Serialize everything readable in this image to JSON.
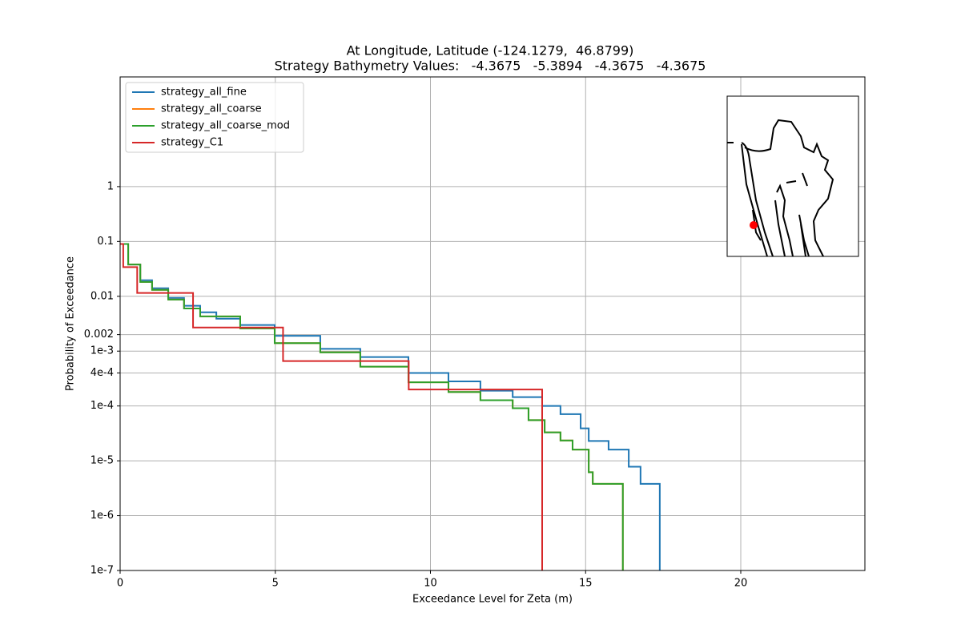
{
  "chart_data": {
    "type": "line",
    "drawstyle": "steps-post",
    "title": "At Longitude, Latitude (-124.1279,  46.8799)",
    "subtitle": "Strategy Bathymetry Values:   -4.3675   -5.3894   -4.3675   -4.3675",
    "xlabel": "Exceedance Level for Zeta (m)",
    "ylabel": "Probability of Exceedance",
    "xlim": [
      0,
      24
    ],
    "xticks": [
      0,
      5,
      10,
      15,
      20
    ],
    "yscale": "log",
    "ylim": [
      1e-07,
      100
    ],
    "yticks": [
      {
        "value": 1e-07,
        "label": "1e-7"
      },
      {
        "value": 1e-06,
        "label": "1e-6"
      },
      {
        "value": 1e-05,
        "label": "1e-5"
      },
      {
        "value": 0.0001,
        "label": "1e-4"
      },
      {
        "value": 0.0004,
        "label": "4e-4"
      },
      {
        "value": 0.001,
        "label": "1e-3"
      },
      0.002,
      0.01,
      0.1,
      1
    ],
    "grid": true,
    "legend": "upper left",
    "series": [
      {
        "name": "strategy_all_fine",
        "color": "#1f77b4",
        "x": [
          0,
          0.26,
          0.65,
          1.03,
          1.55,
          2.06,
          2.58,
          3.1,
          3.87,
          4.98,
          6.45,
          7.74,
          9.29,
          10.58,
          11.61,
          12.65,
          13.6,
          14.19,
          14.84,
          15.1,
          15.74,
          16.39,
          16.77,
          17.39
        ],
        "values": [
          0.09,
          0.038,
          0.0196,
          0.014,
          0.0093,
          0.0067,
          0.0051,
          0.0039,
          0.003,
          0.0019,
          0.0011,
          0.00078,
          0.0004,
          0.00028,
          0.00019,
          0.000145,
          0.0001,
          7.1e-05,
          3.9e-05,
          2.3e-05,
          1.6e-05,
          7.8e-06,
          3.8e-06,
          1e-07
        ]
      },
      {
        "name": "strategy_all_coarse",
        "color": "#ff7f0e",
        "x": [
          0,
          0.26,
          0.65,
          1.03,
          1.55,
          2.06,
          2.58,
          3.87,
          4.98,
          6.45,
          7.74,
          9.29,
          10.58,
          11.61,
          12.65,
          13.16,
          13.68,
          14.19,
          14.58,
          15.1,
          15.23,
          16.2
        ],
        "values": [
          0.09,
          0.038,
          0.0183,
          0.0131,
          0.0087,
          0.006,
          0.0043,
          0.0026,
          0.0014,
          0.00095,
          0.00052,
          0.00027,
          0.00018,
          0.000127,
          9.1e-05,
          5.5e-05,
          3.3e-05,
          2.35e-05,
          1.6e-05,
          6.2e-06,
          3.8e-06,
          1e-07
        ]
      },
      {
        "name": "strategy_all_coarse_mod",
        "color": "#2ca02c",
        "x": [
          0,
          0.26,
          0.65,
          1.03,
          1.55,
          2.06,
          2.58,
          3.87,
          4.98,
          6.45,
          7.74,
          9.29,
          10.58,
          11.61,
          12.65,
          13.16,
          13.68,
          14.19,
          14.58,
          15.1,
          15.23,
          16.2
        ],
        "values": [
          0.09,
          0.038,
          0.0183,
          0.0131,
          0.0087,
          0.006,
          0.0043,
          0.0026,
          0.0014,
          0.00095,
          0.00052,
          0.00027,
          0.00018,
          0.000127,
          9.1e-05,
          5.5e-05,
          3.3e-05,
          2.35e-05,
          1.6e-05,
          6.2e-06,
          3.8e-06,
          1e-07
        ]
      },
      {
        "name": "strategy_C1",
        "color": "#d62728",
        "x": [
          0,
          0.1,
          0.55,
          2.35,
          5.25,
          9.3,
          13.6
        ],
        "values": [
          0.09,
          0.034,
          0.0115,
          0.0027,
          0.00066,
          0.0002,
          1e-07
        ]
      }
    ]
  }
}
